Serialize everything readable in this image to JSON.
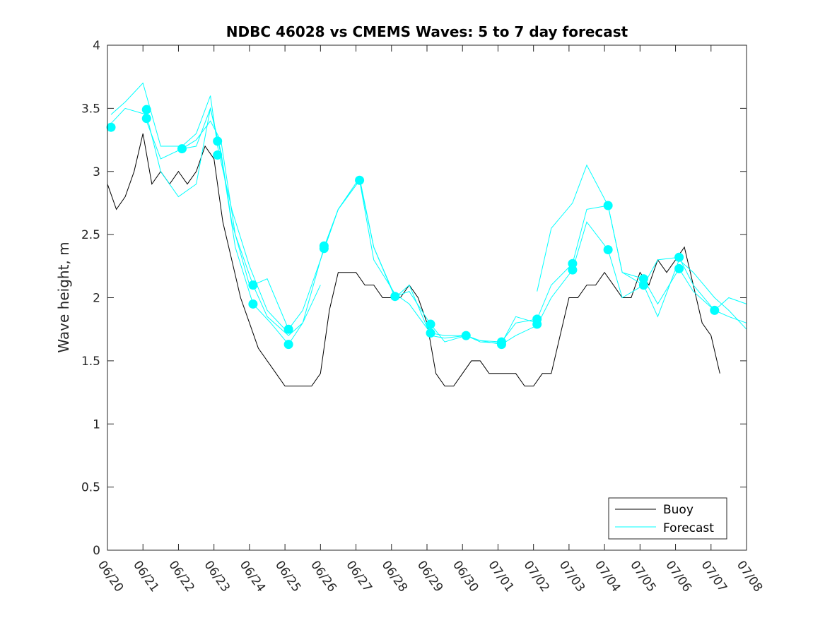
{
  "chart_data": {
    "type": "line",
    "title": "NDBC 46028 vs CMEMS Waves: 5 to 7 day forecast",
    "xlabel": "",
    "ylabel": "Wave height, m",
    "ylim": [
      0,
      4
    ],
    "yticks": [
      0,
      0.5,
      1,
      1.5,
      2,
      2.5,
      3,
      3.5,
      4
    ],
    "ytick_labels": [
      "0",
      "0.5",
      "1",
      "1.5",
      "2",
      "2.5",
      "3",
      "3.5",
      "4"
    ],
    "xlim": [
      0,
      18
    ],
    "x_unit": "days since 06/20",
    "xtick_labels": [
      "06/20",
      "06/21",
      "06/22",
      "06/23",
      "06/24",
      "06/25",
      "06/26",
      "06/27",
      "06/28",
      "06/29",
      "06/30",
      "07/01",
      "07/02",
      "07/03",
      "07/04",
      "07/05",
      "07/06",
      "07/07",
      "07/08"
    ],
    "grid": false,
    "legend": {
      "position": "bottom-right",
      "entries": [
        "Buoy",
        "Forecast"
      ]
    },
    "colors": {
      "buoy": "#000000",
      "forecast": "#00ffff"
    },
    "series": [
      {
        "name": "Buoy",
        "x": [
          0,
          0.25,
          0.5,
          0.75,
          1.0,
          1.25,
          1.5,
          1.75,
          2.0,
          2.25,
          2.5,
          2.75,
          3.0,
          3.25,
          3.5,
          3.75,
          4.0,
          4.25,
          4.5,
          4.75,
          5.0,
          5.25,
          5.5,
          5.75,
          6.0,
          6.25,
          6.5,
          6.75,
          7.0,
          7.25,
          7.5,
          7.75,
          8.0,
          8.25,
          8.5,
          8.75,
          9.0,
          9.25,
          9.5,
          9.75,
          10.0,
          10.25,
          10.5,
          10.75,
          11.0,
          11.25,
          11.5,
          11.75,
          12.0,
          12.25,
          12.5,
          12.75,
          13.0,
          13.25,
          13.5,
          13.75,
          14.0,
          14.25,
          14.5,
          14.75,
          15.0,
          15.25,
          15.5,
          15.75,
          16.0,
          16.25,
          16.5,
          16.75,
          17.0,
          17.25
        ],
        "y": [
          2.9,
          2.7,
          2.8,
          3.0,
          3.3,
          2.9,
          3.0,
          2.9,
          3.0,
          2.9,
          3.0,
          3.2,
          3.1,
          2.6,
          2.3,
          2.0,
          1.8,
          1.6,
          1.5,
          1.4,
          1.3,
          1.3,
          1.3,
          1.3,
          1.4,
          1.9,
          2.2,
          2.2,
          2.2,
          2.1,
          2.1,
          2.0,
          2.0,
          2.0,
          2.1,
          2.0,
          1.8,
          1.4,
          1.3,
          1.3,
          1.4,
          1.5,
          1.5,
          1.4,
          1.4,
          1.4,
          1.4,
          1.3,
          1.3,
          1.4,
          1.4,
          1.7,
          2.0,
          2.0,
          2.1,
          2.1,
          2.2,
          2.1,
          2.0,
          2.0,
          2.2,
          2.1,
          2.3,
          2.2,
          2.3,
          2.4,
          2.1,
          1.8,
          1.7,
          1.4
        ]
      },
      {
        "name": "Forecast",
        "x": [
          0.1,
          0.5,
          1.0,
          1.5,
          2.1,
          2.5,
          2.9,
          3.1,
          3.5,
          4.0,
          4.5,
          5.0,
          5.1
        ],
        "y": [
          3.45,
          3.55,
          3.7,
          3.2,
          3.2,
          3.3,
          3.6,
          3.2,
          2.7,
          2.25,
          1.9,
          1.75,
          1.75
        ]
      },
      {
        "name": "Forecast",
        "x": [
          0,
          0.5,
          1.1,
          1.5,
          2.0,
          2.5,
          2.9,
          3.2,
          3.5,
          4.0
        ],
        "y": [
          3.35,
          3.5,
          3.45,
          3.0,
          2.8,
          2.9,
          3.5,
          3.15,
          2.6,
          2.1
        ]
      },
      {
        "name": "Forecast",
        "x": [
          1.1,
          1.5,
          2.1,
          2.5,
          2.9,
          3.2,
          3.6,
          4.1,
          4.6,
          5.1,
          5.5,
          6.0
        ],
        "y": [
          3.4,
          3.1,
          3.18,
          3.2,
          3.5,
          3.13,
          2.4,
          1.95,
          1.8,
          1.63,
          1.8,
          2.1
        ]
      },
      {
        "name": "Forecast",
        "x": [
          2.1,
          2.5,
          2.9,
          3.2,
          3.6,
          4.1,
          4.5,
          5.1,
          5.5,
          6.1,
          6.5,
          7.1,
          7.5,
          8.1
        ],
        "y": [
          3.18,
          3.25,
          3.4,
          3.24,
          2.5,
          2.1,
          1.85,
          1.7,
          1.8,
          2.4,
          2.7,
          2.93,
          2.4,
          2.0
        ]
      },
      {
        "name": "Forecast",
        "x": [
          4.1,
          4.5,
          5.1,
          5.5,
          6.1,
          6.5,
          7.1,
          7.5,
          8.1,
          8.5,
          9.1,
          9.5,
          10.1
        ],
        "y": [
          2.1,
          2.15,
          1.75,
          1.9,
          2.38,
          2.7,
          2.93,
          2.3,
          2.03,
          1.95,
          1.72,
          1.7,
          1.7
        ]
      },
      {
        "name": "Forecast",
        "x": [
          6.1,
          6.5,
          7.1,
          7.5,
          8.1,
          8.5,
          9.1,
          9.5,
          10.1,
          10.5,
          11.1,
          11.5,
          12.1
        ],
        "y": [
          2.4,
          2.7,
          2.95,
          2.4,
          2.01,
          2.05,
          1.79,
          1.65,
          1.7,
          1.65,
          1.64,
          1.85,
          1.8
        ]
      },
      {
        "name": "Forecast",
        "x": [
          8.1,
          8.5,
          9.1,
          9.5,
          10.1,
          10.5,
          11.1,
          11.5,
          12.1,
          12.5,
          13.1,
          13.5,
          14.1
        ],
        "y": [
          2.0,
          2.1,
          1.7,
          1.68,
          1.7,
          1.66,
          1.65,
          1.8,
          1.83,
          2.1,
          2.27,
          2.7,
          2.73
        ]
      },
      {
        "name": "Forecast",
        "x": [
          10.1,
          10.5,
          11.1,
          11.5,
          12.1,
          12.5,
          13.1,
          13.5,
          14.1,
          14.5,
          15.1,
          15.5,
          16.1,
          16.5,
          17.1,
          17.5,
          18.0
        ],
        "y": [
          1.7,
          1.66,
          1.63,
          1.7,
          1.78,
          2.0,
          2.22,
          2.6,
          2.38,
          2.0,
          2.1,
          2.3,
          2.32,
          2.1,
          1.9,
          1.85,
          1.8
        ]
      },
      {
        "name": "Forecast",
        "x": [
          12.1,
          12.5,
          13.1,
          13.5,
          14.1,
          14.5,
          15.1,
          15.5,
          16.1,
          16.5,
          17.1,
          17.5,
          18.0
        ],
        "y": [
          2.05,
          2.55,
          2.75,
          3.05,
          2.73,
          2.2,
          2.15,
          1.95,
          2.23,
          2.05,
          1.9,
          2.0,
          1.95
        ]
      },
      {
        "name": "Forecast",
        "x": [
          14.1,
          14.5,
          15.1,
          15.5,
          16.1,
          16.5,
          17.1,
          17.5,
          18.0
        ],
        "y": [
          2.73,
          2.2,
          2.1,
          1.85,
          2.3,
          2.2,
          2.0,
          1.9,
          1.75
        ]
      }
    ],
    "markers": {
      "x": [
        0.1,
        1.1,
        1.1,
        2.1,
        3.1,
        3.1,
        4.1,
        4.1,
        5.1,
        5.1,
        6.1,
        6.1,
        7.1,
        8.1,
        9.1,
        9.1,
        10.1,
        11.1,
        11.1,
        12.1,
        12.1,
        13.1,
        13.1,
        14.1,
        14.1,
        15.1,
        15.1,
        16.1,
        16.1,
        17.1
      ],
      "y": [
        3.35,
        3.49,
        3.42,
        3.18,
        3.24,
        3.13,
        2.1,
        1.95,
        1.75,
        1.63,
        2.41,
        2.39,
        2.93,
        2.01,
        1.79,
        1.72,
        1.7,
        1.65,
        1.63,
        1.83,
        1.79,
        2.27,
        2.22,
        2.73,
        2.38,
        2.15,
        2.1,
        2.32,
        2.23,
        1.9
      ]
    }
  }
}
